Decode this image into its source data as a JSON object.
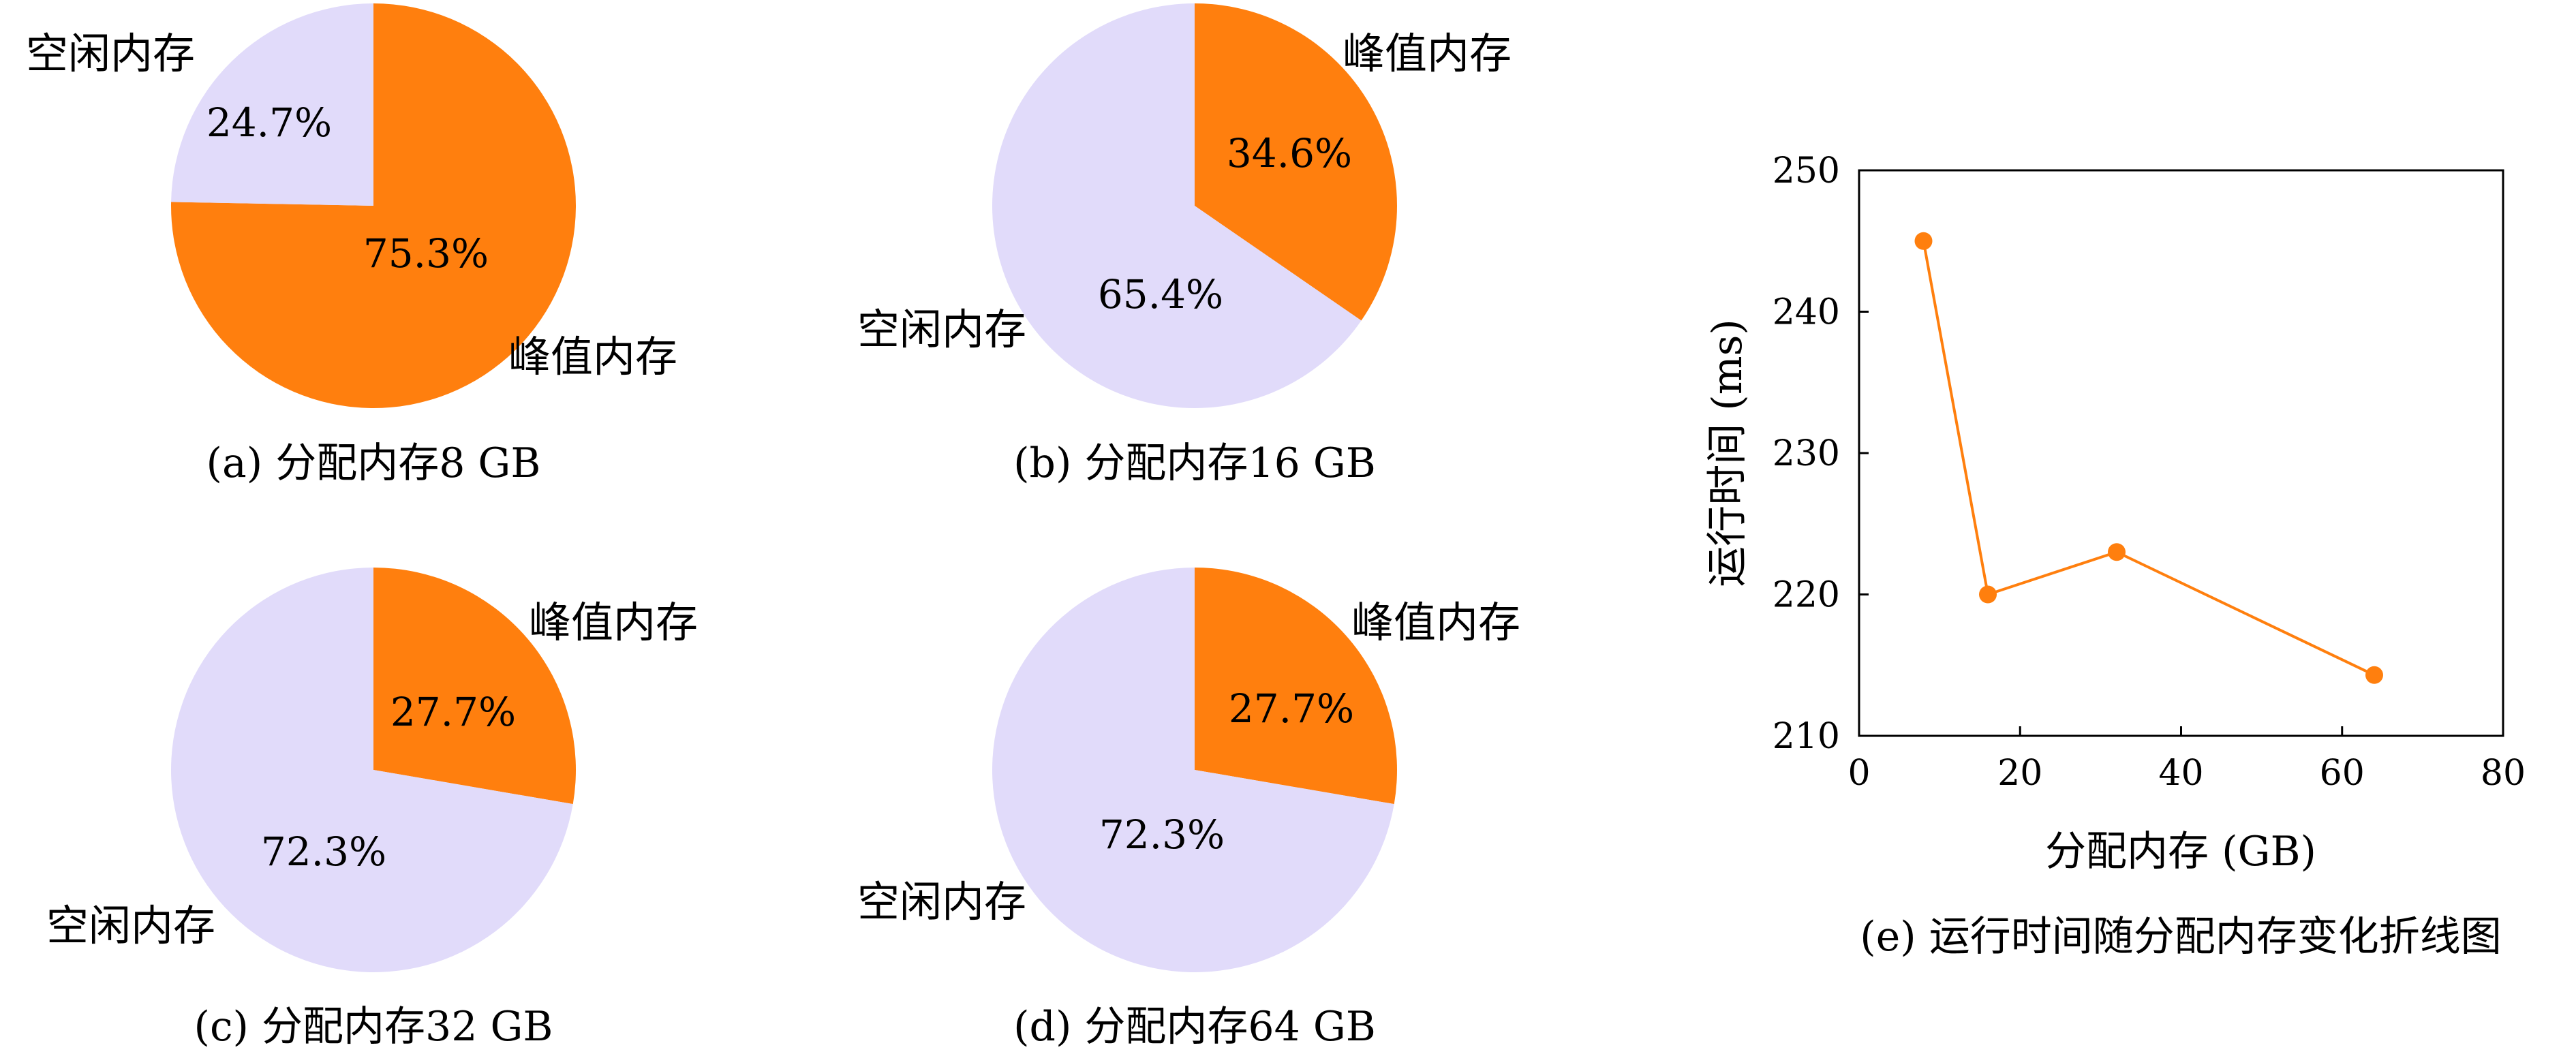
{
  "colors": {
    "peak": "#ff7f0e",
    "idle": "#e1dbfa",
    "line": "#ff7f0e",
    "axis": "#000000"
  },
  "chart_data": [
    {
      "type": "pie",
      "caption": "(a) 分配内存8 GB",
      "slices": [
        {
          "label": "峰值内存",
          "value": 75.3,
          "display": "75.3%"
        },
        {
          "label": "空闲内存",
          "value": 24.7,
          "display": "24.7%"
        }
      ]
    },
    {
      "type": "pie",
      "caption": "(b) 分配内存16 GB",
      "slices": [
        {
          "label": "峰值内存",
          "value": 34.6,
          "display": "34.6%"
        },
        {
          "label": "空闲内存",
          "value": 65.4,
          "display": "65.4%"
        }
      ]
    },
    {
      "type": "pie",
      "caption": "(c) 分配内存32 GB",
      "slices": [
        {
          "label": "峰值内存",
          "value": 27.7,
          "display": "27.7%"
        },
        {
          "label": "空闲内存",
          "value": 72.3,
          "display": "72.3%"
        }
      ]
    },
    {
      "type": "pie",
      "caption": "(d) 分配内存64 GB",
      "slices": [
        {
          "label": "峰值内存",
          "value": 27.7,
          "display": "27.7%"
        },
        {
          "label": "空闲内存",
          "value": 72.3,
          "display": "72.3%"
        }
      ]
    },
    {
      "type": "line",
      "caption": "(e) 运行时间随分配内存变化折线图",
      "xlabel": "分配内存 (GB)",
      "ylabel": "运行时间 (ms)",
      "xlim": [
        0,
        80
      ],
      "ylim": [
        210,
        250
      ],
      "xticks": [
        "0",
        "20",
        "40",
        "60",
        "80"
      ],
      "yticks": [
        "210",
        "220",
        "230",
        "240",
        "250"
      ],
      "grid": false,
      "series": [
        {
          "x": [
            8,
            16,
            32,
            64
          ],
          "y": [
            245,
            220,
            223,
            214.3
          ]
        }
      ]
    }
  ]
}
